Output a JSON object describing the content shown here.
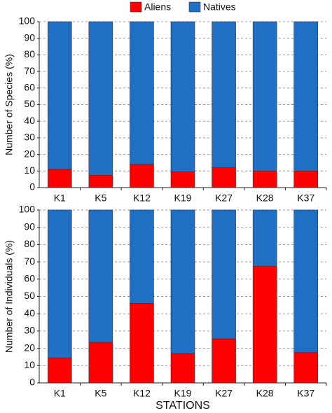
{
  "chart_data": [
    {
      "type": "bar",
      "stacked": true,
      "legend": "top",
      "grid": true,
      "ylabel": "Number of Species (%)",
      "categories": [
        "K1",
        "K5",
        "K12",
        "K19",
        "K27",
        "K28",
        "K37"
      ],
      "series": [
        {
          "name": "Aliens",
          "color": "#ff0000",
          "values": [
            11,
            7.5,
            14,
            9.5,
            12,
            10,
            10
          ]
        },
        {
          "name": "Natives",
          "color": "#1f6fc4",
          "values": [
            89,
            92.5,
            86,
            90.5,
            88,
            90,
            90
          ]
        }
      ],
      "ylim": [
        0,
        100
      ],
      "yticks": [
        0,
        10,
        20,
        30,
        40,
        50,
        60,
        70,
        80,
        90,
        100
      ]
    },
    {
      "type": "bar",
      "stacked": true,
      "grid": true,
      "ylabel": "Number of Individuals (%)",
      "xlabel": "STATIONS",
      "categories": [
        "K1",
        "K5",
        "K12",
        "K19",
        "K27",
        "K28",
        "K37"
      ],
      "series": [
        {
          "name": "Aliens",
          "color": "#ff0000",
          "values": [
            14.5,
            23.5,
            46,
            17,
            25.5,
            67.5,
            17.5
          ]
        },
        {
          "name": "Natives",
          "color": "#1f6fc4",
          "values": [
            85.5,
            76.5,
            54,
            83,
            74.5,
            32.5,
            82.5
          ]
        }
      ],
      "ylim": [
        0,
        100
      ],
      "yticks": [
        0,
        10,
        20,
        30,
        40,
        50,
        60,
        70,
        80,
        90,
        100
      ]
    }
  ]
}
